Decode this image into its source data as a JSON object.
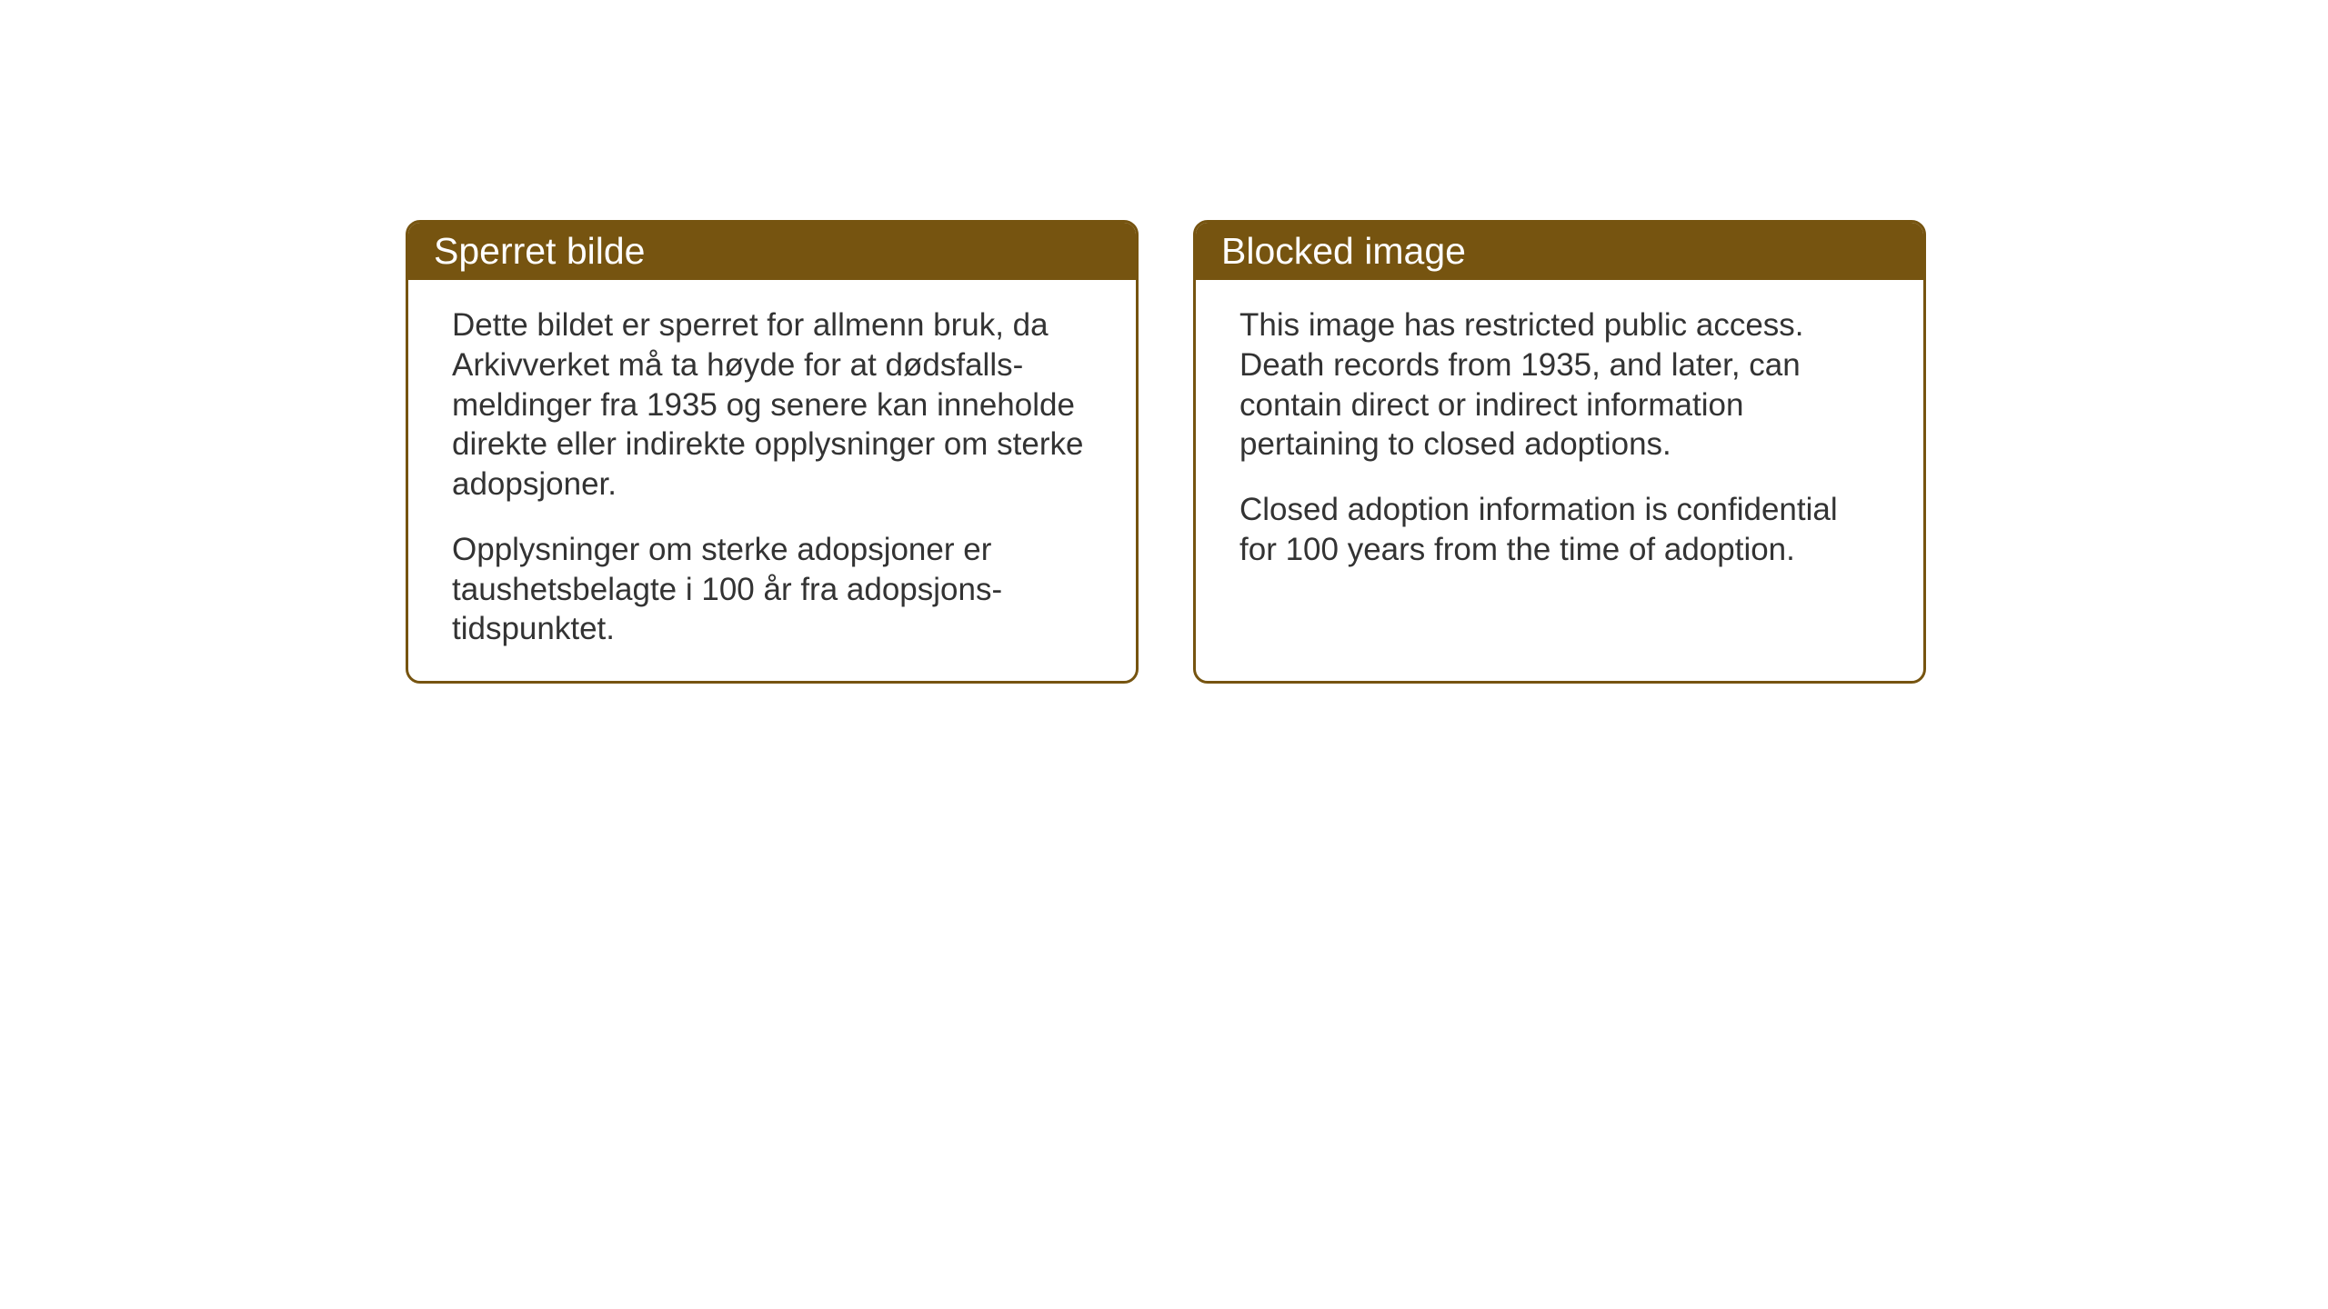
{
  "cards": {
    "norwegian": {
      "title": "Sperret bilde",
      "paragraph1": "Dette bildet er sperret for allmenn bruk, da Arkivverket må ta høyde for at dødsfalls-meldinger fra 1935 og senere kan inneholde direkte eller indirekte opplysninger om sterke adopsjoner.",
      "paragraph2": "Opplysninger om sterke adopsjoner er taushetsbelagte i 100 år fra adopsjons-tidspunktet."
    },
    "english": {
      "title": "Blocked image",
      "paragraph1": "This image has restricted public access. Death records from 1935, and later, can contain direct or indirect information pertaining to closed adoptions.",
      "paragraph2": "Closed adoption information is confidential for 100 years from the time of adoption."
    }
  },
  "styling": {
    "card_border_color": "#765410",
    "card_header_bg": "#765410",
    "card_header_text_color": "#ffffff",
    "card_body_bg": "#ffffff",
    "card_body_text_color": "#333333",
    "page_bg": "#ffffff",
    "header_fontsize": 41,
    "body_fontsize": 35,
    "border_radius": 16,
    "border_width": 3
  }
}
